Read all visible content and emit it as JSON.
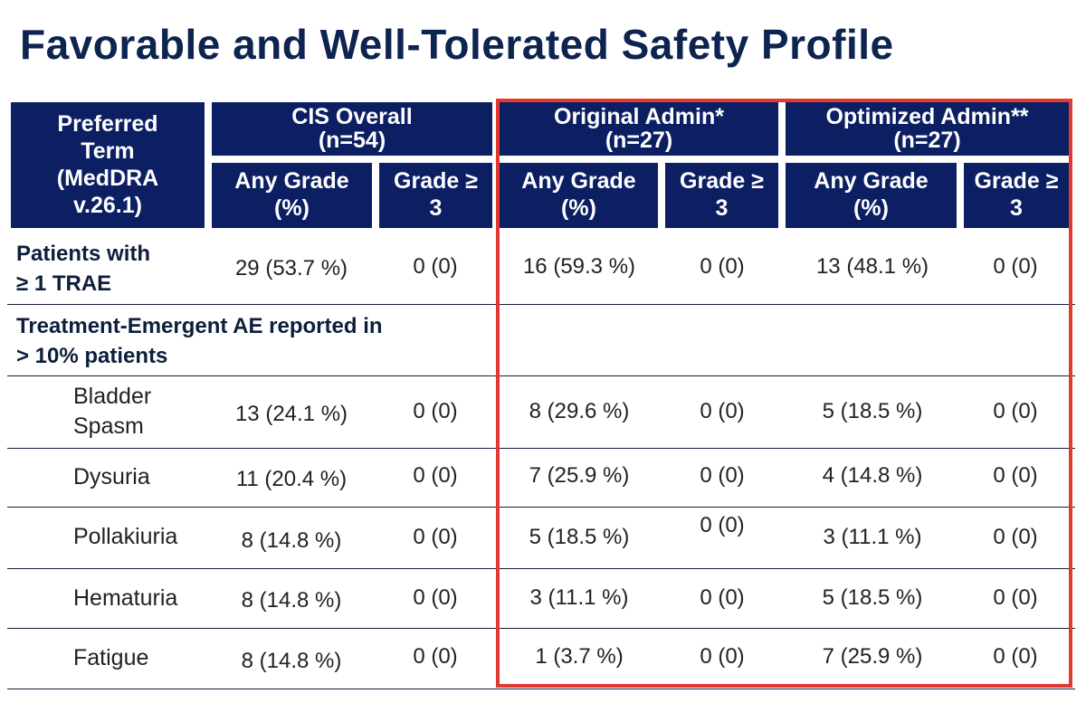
{
  "title": "Favorable and Well-Tolerated Safety Profile",
  "header": {
    "preferred_term": "Preferred\nTerm\n(MedDRA\nv.26.1)",
    "groups": [
      {
        "label": "CIS Overall\n(n=54)"
      },
      {
        "label": "Original Admin*\n(n=27)"
      },
      {
        "label": "Optimized Admin**\n(n=27)"
      }
    ],
    "any_grade": "Any Grade\n(%)",
    "grade3": "Grade ≥\n3"
  },
  "rows": [
    {
      "label": "Patients with\n≥ 1 TRAE",
      "values": [
        "29 (53.7 %)",
        "0 (0)",
        "16 (59.3 %)",
        "0 (0)",
        "13 (48.1 %)",
        "0 (0)"
      ]
    },
    {
      "label": "Treatment-Emergent AE reported in\n> 10% patients"
    },
    {
      "label": "Bladder\nSpasm",
      "values": [
        "13 (24.1 %)",
        "0 (0)",
        "8 (29.6 %)",
        "0 (0)",
        "5 (18.5 %)",
        "0 (0)"
      ]
    },
    {
      "label": "Dysuria",
      "values": [
        "11 (20.4 %)",
        "0 (0)",
        "7 (25.9 %)",
        "0 (0)",
        "4 (14.8 %)",
        "0 (0)"
      ]
    },
    {
      "label": "Pollakiuria",
      "values": [
        "8 (14.8 %)",
        "0 (0)",
        "5 (18.5 %)",
        "0 (0)",
        "3 (11.1 %)",
        "0 (0)"
      ]
    },
    {
      "label": "Hematuria",
      "values": [
        "8 (14.8 %)",
        "0 (0)",
        "3 (11.1 %)",
        "0 (0)",
        "5 (18.5 %)",
        "0 (0)"
      ]
    },
    {
      "label": "Fatigue",
      "values": [
        "8 (14.8 %)",
        "0 (0)",
        "1 (3.7 %)",
        "0 (0)",
        "7 (25.9 %)",
        "0 (0)"
      ]
    }
  ],
  "colors": {
    "header_bg": "#0d1f63",
    "title": "#0d2350",
    "highlight": "#e03a30"
  }
}
